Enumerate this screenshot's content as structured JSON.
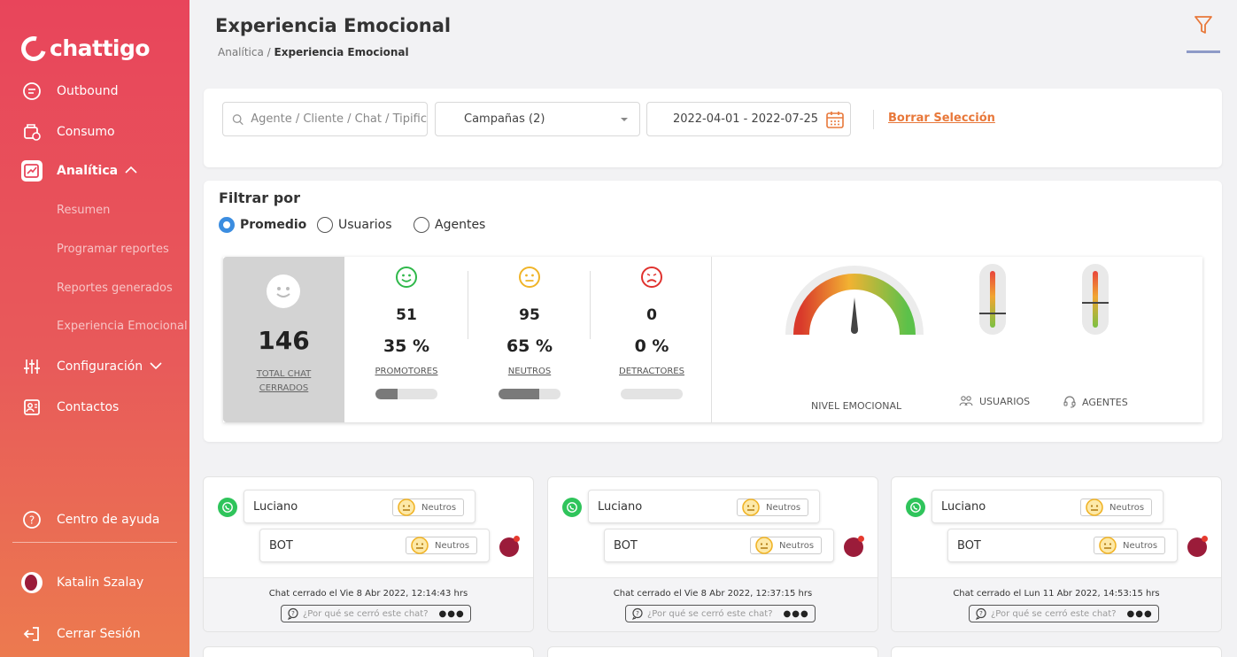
{
  "app": {
    "logo_text": "chattigo"
  },
  "sidebar": {
    "items": [
      {
        "label": "Outbound",
        "icon": "chat-bubble-icon"
      },
      {
        "label": "Consumo",
        "icon": "wallet-icon"
      },
      {
        "label": "Analítica",
        "icon": "analytics-icon",
        "active": true
      },
      {
        "label": "Configuración",
        "icon": "sliders-icon"
      },
      {
        "label": "Contactos",
        "icon": "contacts-icon"
      }
    ],
    "sub_items": [
      "Resumen",
      "Programar reportes",
      "Reportes generados",
      "Experiencia Emocional"
    ],
    "help": "Centro de ayuda",
    "user": "Katalin Szalay",
    "logout": "Cerrar Sesión"
  },
  "header": {
    "title": "Experiencia Emocional",
    "breadcrumb_parent": "Analítica /",
    "breadcrumb_current": "Experiencia Emocional"
  },
  "filters": {
    "search_placeholder": "Agente / Cliente / Chat / Tipific",
    "campaigns": "Campañas (2)",
    "date_range": "2022-04-01 - 2022-07-25",
    "clear": "Borrar Selección"
  },
  "filter_by": {
    "title": "Filtrar por",
    "options": [
      "Promedio",
      "Usuarios",
      "Agentes"
    ],
    "selected": "Promedio"
  },
  "stats": {
    "total": {
      "value": "146",
      "label_1": "TOTAL CHAT",
      "label_2": "CERRADOS"
    },
    "metrics": [
      {
        "count": "51",
        "percent": "35 %",
        "label": "PROMOTORES",
        "fraction": 0.35,
        "color": "#2fb84a"
      },
      {
        "count": "95",
        "percent": "65 %",
        "label": "NEUTROS",
        "fraction": 0.65,
        "color": "#f0b428"
      },
      {
        "count": "0",
        "percent": "0 %",
        "label": "DETRACTORES",
        "fraction": 0.0,
        "color": "#e0322e"
      }
    ],
    "gauge_label": "NIVEL EMOCIONAL",
    "users_label": "USUARIOS",
    "agents_label": "AGENTES"
  },
  "chats": [
    {
      "client": "Luciano",
      "client_tag": "Neutros",
      "agent": "BOT",
      "agent_tag": "Neutros",
      "closed": "Chat cerrado el Vie 8 Abr 2022, 12:14:43 hrs",
      "why": "¿Por qué se cerró este chat?"
    },
    {
      "client": "Luciano",
      "client_tag": "Neutros",
      "agent": "BOT",
      "agent_tag": "Neutros",
      "closed": "Chat cerrado el Vie 8 Abr 2022, 12:37:15 hrs",
      "why": "¿Por qué se cerró este chat?"
    },
    {
      "client": "Luciano",
      "client_tag": "Neutros",
      "agent": "BOT",
      "agent_tag": "Neutros",
      "closed": "Chat cerrado el Lun 11 Abr 2022, 14:53:15 hrs",
      "why": "¿Por qué se cerró este chat?"
    }
  ]
}
